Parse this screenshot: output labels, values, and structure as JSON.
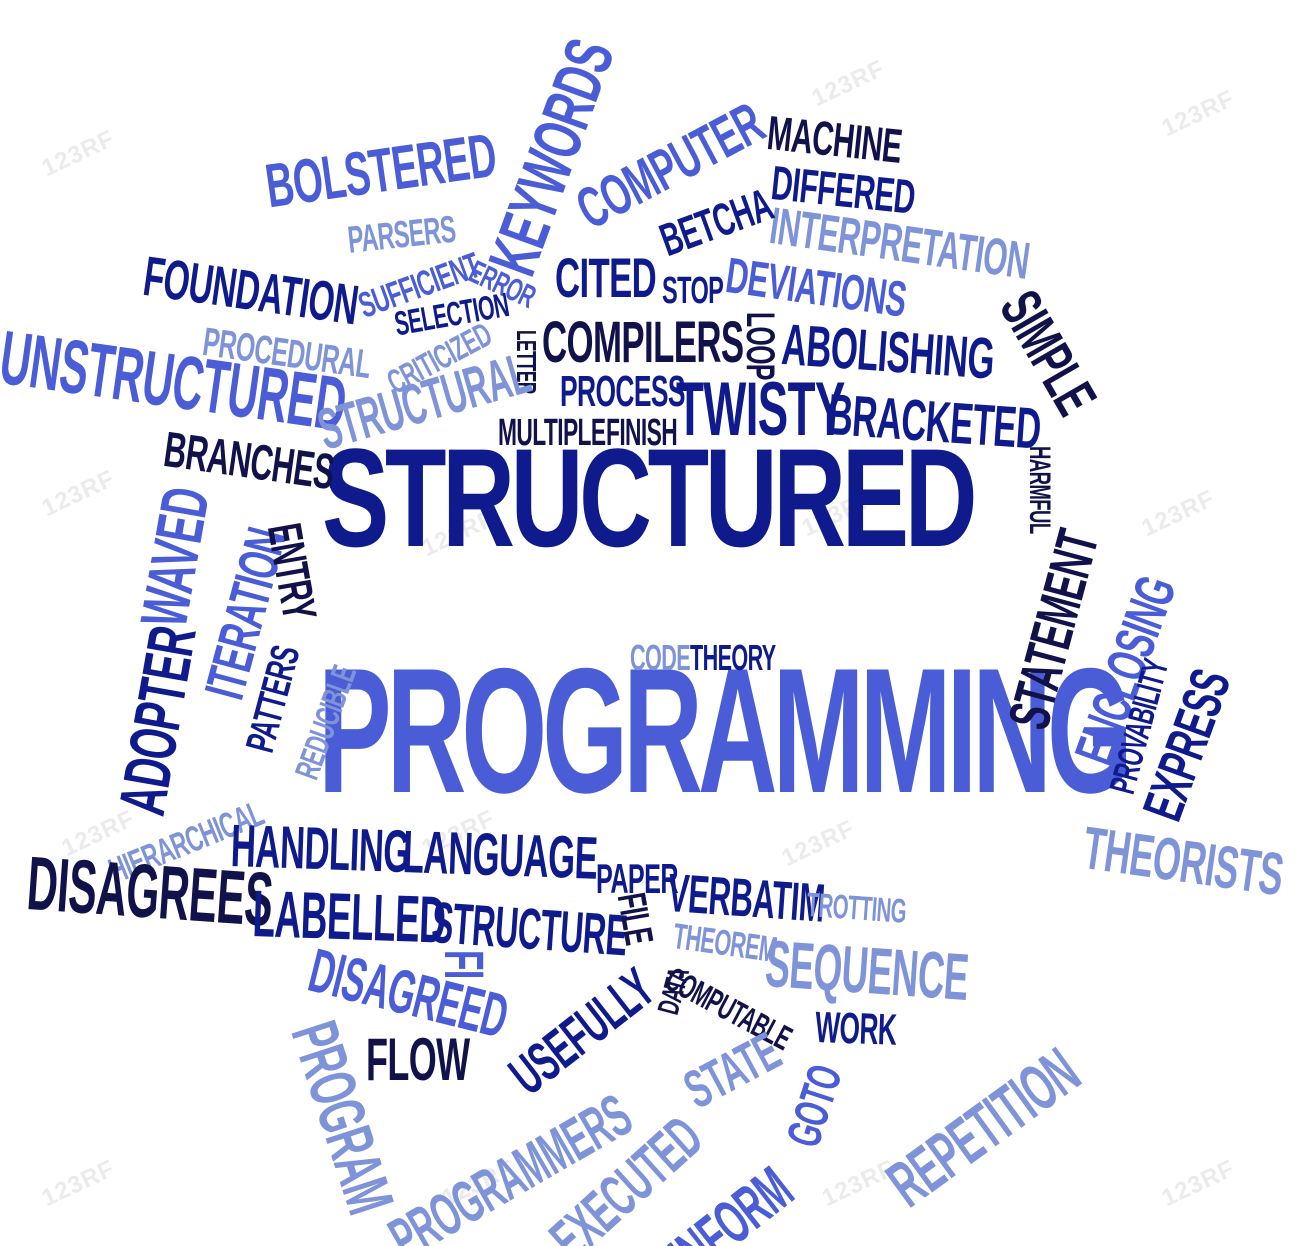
{
  "watermark": "123RF",
  "colors": {
    "navy": "#0f1a8c",
    "dark": "#1e1e5a",
    "blue": "#4a5cd6",
    "light": "#7f93d9"
  },
  "words": {
    "structured": "STRUCTURED",
    "programming": "PROGRAMMING",
    "keywords": "KEYWORDS",
    "bolstered": "BOLSTERED",
    "computer": "COMPUTER",
    "machine": "MACHINE",
    "differed": "DIFFERED",
    "interpretation": "INTERPRETATION",
    "betcha": "BETCHA",
    "parsers": "PARSERS",
    "error": "ERROR",
    "foundation": "FOUNDATION",
    "sufficient": "SUFFICIENT",
    "cited": "CITED",
    "stop": "STOP",
    "deviations": "DEVIATIONS",
    "selection": "SELECTION",
    "procedural": "PROCEDURAL",
    "criticized": "CRITICIZED",
    "letter": "LETTER",
    "compilers": "COMPILERS",
    "loop": "LOOP",
    "abolishing": "ABOLISHING",
    "simple": "SIMPLE",
    "unstructured": "UNSTRUCTURED",
    "structural": "STRUCTURAL",
    "process": "PROCESS",
    "twisty": "TWISTY",
    "bracketed": "BRACKETED",
    "multiple": "MULTIPLE",
    "finish": "FINISH",
    "branches": "BRANCHES",
    "harmful": "HARMFUL",
    "waved": "WAVED",
    "iteration": "ITERATION",
    "entry": "ENTRY",
    "patters": "PATTERS",
    "reducible": "REDUCIBLE",
    "code": "CODE",
    "theory": "THEORY",
    "statement": "STATEMENT",
    "enclosing": "ENCLOSING",
    "provability": "PROVABILITY",
    "express": "EXPRESS",
    "adopter": "ADOPTER",
    "hierarchical": "HIERARCHICAL",
    "theorists": "THEORISTS",
    "handling": "HANDLING",
    "language": "LANGUAGE",
    "paper": "PAPER",
    "verbatim": "VERBATIM",
    "trotting": "TROTTING",
    "disagrees": "DISAGREES",
    "labelled": "LABELLED",
    "structure": "STRUCTURE",
    "file": "FILE",
    "theorem": "THEOREM",
    "sequence": "SEQUENCE",
    "disagreed": "DISAGREED",
    "fi": "FI",
    "computable": "COMPUTABLE",
    "data": "DATA",
    "usefully": "USEFULLY",
    "work": "WORK",
    "flow": "FLOW",
    "state": "STATE",
    "repetition": "REPETITION",
    "program": "PROGRAM",
    "programmers": "PROGRAMMERS",
    "executed": "EXECUTED",
    "goto": "GOTO",
    "inform": "INFORM"
  }
}
